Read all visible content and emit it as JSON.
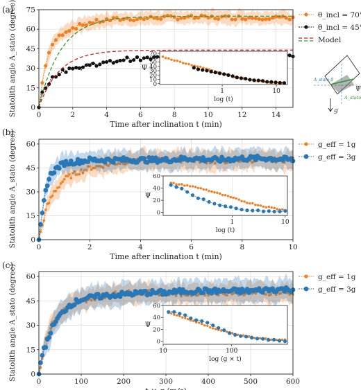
{
  "figure": {
    "background": "#ffffff"
  },
  "colors": {
    "orange": "#f07f22",
    "black": "#111111",
    "blue": "#2878b8",
    "red": "#d7191c",
    "green": "#2e9b2e"
  },
  "chart_data": [
    {
      "type": "line",
      "panel_label": "(a)",
      "xlabel": "Time after inclination t (min)",
      "ylabel": "Statolith angle A_stato (degree)",
      "xlim": [
        0,
        15
      ],
      "ylim": [
        0,
        75
      ],
      "xticks": [
        0,
        2,
        4,
        6,
        8,
        10,
        12,
        14
      ],
      "yticks": [
        0,
        15,
        30,
        45,
        60,
        75
      ],
      "legend_position": "outside-right",
      "series": [
        {
          "name": "θ_incl = 70°",
          "role": "sat",
          "color": "orange",
          "marker": "dot",
          "x": [
            0,
            0.3,
            0.6,
            1,
            1.5,
            2,
            3,
            4,
            5,
            6,
            7,
            8,
            9,
            10,
            11,
            12,
            13,
            14,
            14.8
          ],
          "y": [
            0,
            28,
            42,
            52,
            58,
            61,
            65,
            67,
            68,
            68,
            69,
            69,
            69,
            69,
            69,
            69,
            69,
            69,
            68
          ],
          "band": 5
        },
        {
          "name": "θ_incl = 45°",
          "role": "sat",
          "color": "black",
          "marker": "dot",
          "x": [
            0,
            0.2,
            0.5,
            1,
            1.5,
            2,
            2.5,
            3,
            4,
            5,
            6,
            7,
            8,
            9,
            10,
            11,
            12,
            13,
            14,
            14.8
          ],
          "y": [
            0,
            12,
            18,
            25,
            28,
            31,
            30,
            33,
            34,
            37,
            37,
            38,
            38,
            38,
            38,
            38,
            38,
            38,
            39,
            39
          ],
          "band": 0
        },
        {
          "name": "Model",
          "role": "model",
          "color": "red",
          "tau": 1.2,
          "amp": 44,
          "style": "dashed"
        },
        {
          "name": "",
          "role": "model",
          "color": "green",
          "tau": 1.3,
          "amp": 70,
          "style": "dashed"
        }
      ],
      "inset": {
        "xlabel": "log (t)",
        "ylabel": "Ψ",
        "xscale": "log",
        "xlim": [
          0.07,
          16
        ],
        "ylim": [
          -2,
          75
        ],
        "xtick_labels": [
          "1",
          "10"
        ],
        "xtick_values": [
          1,
          10
        ],
        "yticks": [
          0,
          10,
          20,
          30,
          40,
          50,
          60,
          70
        ],
        "series": [
          {
            "color": "orange",
            "x": [
              0.08,
              0.15,
              0.3,
              0.6,
              1,
              2,
              4,
              8,
              14
            ],
            "y": [
              62,
              52,
              42,
              32,
              24,
              14,
              7,
              3,
              1
            ]
          },
          {
            "color": "black",
            "x": [
              0.3,
              0.6,
              1,
              2,
              4,
              8,
              14
            ],
            "y": [
              36,
              28,
              22,
              14,
              8,
              4,
              2
            ]
          }
        ]
      },
      "schematic": {
        "labels": [
          "A_stato,0",
          "Ψ",
          "A_stato",
          "g"
        ]
      }
    },
    {
      "type": "line",
      "panel_label": "(b)",
      "xlabel": "Time after inclination t (min)",
      "ylabel": "Statolith angle A_stato (degree)",
      "xlim": [
        0,
        10
      ],
      "ylim": [
        0,
        63
      ],
      "xticks": [
        0,
        2,
        4,
        6,
        8,
        10
      ],
      "yticks": [
        0,
        15,
        30,
        45,
        60
      ],
      "legend_position": "outside-right",
      "series": [
        {
          "name": "g_eff = 1g",
          "role": "sat",
          "color": "orange",
          "marker": "star",
          "x": [
            0,
            0.3,
            0.6,
            1,
            1.5,
            2,
            3,
            4,
            5,
            6,
            7,
            8,
            9,
            10
          ],
          "y": [
            0,
            20,
            30,
            38,
            42,
            45,
            48,
            50,
            50,
            50,
            49,
            50,
            50,
            50
          ],
          "band": 6
        },
        {
          "name": "g_eff = 3g",
          "role": "sat",
          "color": "blue",
          "marker": "dot",
          "x": [
            0,
            0.15,
            0.3,
            0.5,
            0.8,
            1,
            1.5,
            2,
            3,
            4,
            5,
            6,
            7,
            8,
            9,
            10
          ],
          "y": [
            0,
            18,
            34,
            42,
            46,
            48,
            49,
            50,
            50,
            50,
            50,
            51,
            50,
            51,
            51,
            50
          ],
          "band": 6
        }
      ],
      "inset": {
        "xlabel": "log (t)",
        "ylabel": "Ψ",
        "xscale": "log",
        "xlim": [
          0.05,
          11
        ],
        "ylim": [
          -5,
          60
        ],
        "xtick_labels": [
          "1",
          "10"
        ],
        "xtick_values": [
          1,
          10
        ],
        "yticks": [
          0,
          20,
          40,
          60
        ],
        "series": [
          {
            "color": "orange",
            "x": [
              0.07,
              0.15,
              0.3,
              0.6,
              1,
              2,
              4,
              8,
              10
            ],
            "y": [
              48,
              44,
              38,
              30,
              24,
              16,
              10,
              5,
              4
            ]
          },
          {
            "color": "blue",
            "x": [
              0.07,
              0.12,
              0.2,
              0.4,
              0.8,
              1.5,
              3,
              6,
              10
            ],
            "y": [
              46,
              38,
              26,
              16,
              9,
              5,
              3,
              2,
              2
            ]
          }
        ]
      }
    },
    {
      "type": "line",
      "panel_label": "(c)",
      "xlabel": "t × g (m/s)",
      "ylabel": "Statolith angle A_stato (degree)",
      "xlim": [
        0,
        600
      ],
      "ylim": [
        0,
        63
      ],
      "xticks": [
        0,
        100,
        200,
        300,
        400,
        500,
        600
      ],
      "yticks": [
        0,
        15,
        30,
        45,
        60
      ],
      "legend_position": "outside-right",
      "series": [
        {
          "name": "g_eff = 1g",
          "role": "sat",
          "color": "orange",
          "marker": "star",
          "x": [
            0,
            15,
            30,
            50,
            80,
            100,
            150,
            200,
            250,
            300,
            350,
            400,
            450,
            500,
            550,
            600
          ],
          "y": [
            0,
            20,
            30,
            38,
            42,
            45,
            48,
            50,
            50,
            50,
            49,
            50,
            50,
            50,
            50,
            50
          ],
          "band": 6
        },
        {
          "name": "g_eff = 3g",
          "role": "sat",
          "color": "blue",
          "marker": "dot",
          "x": [
            0,
            10,
            20,
            30,
            50,
            70,
            100,
            150,
            200,
            250,
            300,
            350,
            400,
            450,
            500,
            550,
            600
          ],
          "y": [
            0,
            15,
            20,
            28,
            36,
            42,
            46,
            48,
            49,
            50,
            50,
            51,
            51,
            51,
            51,
            52,
            52
          ],
          "band": 7
        }
      ],
      "inset": {
        "xlabel": "log (g × t)",
        "ylabel": "Ψ",
        "xscale": "log",
        "xlim": [
          10,
          650
        ],
        "ylim": [
          -5,
          60
        ],
        "xtick_labels": [
          "10",
          "100"
        ],
        "xtick_values": [
          10,
          100
        ],
        "yticks": [
          0,
          20,
          40,
          60
        ],
        "series": [
          {
            "color": "orange",
            "x": [
              12,
              15,
              20,
              30,
              45,
              70,
              100,
              150,
              250,
              400,
              600
            ],
            "y": [
              48,
              44,
              40,
              32,
              25,
              18,
              14,
              9,
              5,
              3,
              2
            ]
          },
          {
            "color": "blue",
            "x": [
              12,
              15,
              20,
              30,
              45,
              70,
              100,
              150,
              250,
              400,
              600
            ],
            "y": [
              50,
              48,
              44,
              36,
              30,
              20,
              12,
              8,
              4,
              2,
              1
            ]
          }
        ]
      }
    }
  ]
}
